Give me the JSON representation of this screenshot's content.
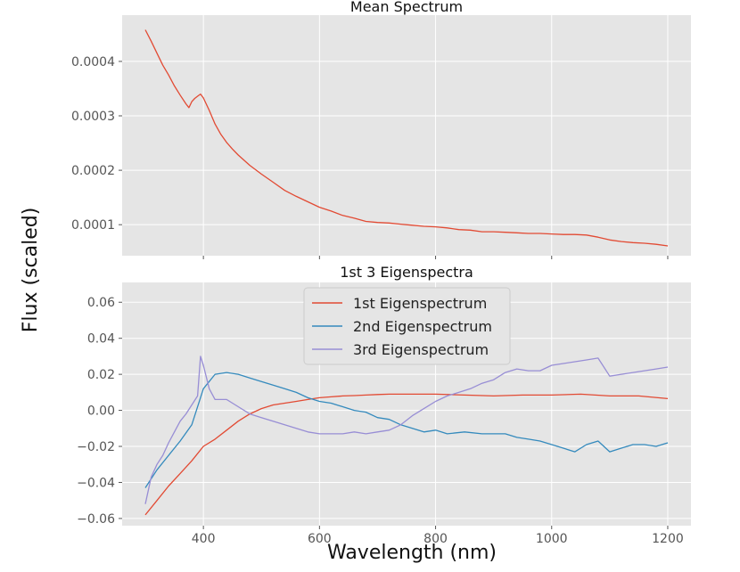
{
  "ylabel": "Flux (scaled)",
  "xlabel": "Wavelength (nm)",
  "colors": {
    "panel_bg": "#e5e5e5",
    "grid": "#ffffff",
    "red": "#e24a33",
    "blue": "#348abd",
    "purple": "#988ed5"
  },
  "chart_data": [
    {
      "type": "line",
      "title": "Mean Spectrum",
      "xlim": [
        260,
        1240
      ],
      "ylim": [
        4.3e-05,
        0.000485
      ],
      "x_ticks": [
        400,
        600,
        800,
        1000,
        1200
      ],
      "y_ticks": [
        0.0001,
        0.0002,
        0.0003,
        0.0004
      ],
      "y_tick_labels": [
        "0.0001",
        "0.0002",
        "0.0003",
        "0.0004"
      ],
      "show_x_tick_labels": false,
      "series": [
        {
          "name": "Mean Spectrum",
          "color": "#e24a33",
          "x": [
            300,
            310,
            320,
            330,
            340,
            350,
            360,
            370,
            375,
            380,
            385,
            390,
            395,
            400,
            410,
            420,
            430,
            440,
            450,
            460,
            480,
            500,
            520,
            540,
            560,
            580,
            600,
            620,
            640,
            660,
            680,
            700,
            720,
            740,
            760,
            780,
            800,
            820,
            840,
            860,
            880,
            900,
            920,
            940,
            960,
            980,
            1000,
            1020,
            1040,
            1060,
            1080,
            1100,
            1120,
            1140,
            1160,
            1180,
            1200
          ],
          "y": [
            0.000458,
            0.000437,
            0.000415,
            0.000393,
            0.000375,
            0.000355,
            0.000338,
            0.000322,
            0.000315,
            0.000326,
            0.000332,
            0.000336,
            0.00034,
            0.000333,
            0.00031,
            0.000285,
            0.000266,
            0.000251,
            0.000239,
            0.000228,
            0.000209,
            0.000193,
            0.000178,
            0.000163,
            0.000152,
            0.000142,
            0.000132,
            0.000125,
            0.000117,
            0.000112,
            0.000106,
            0.000104,
            0.000103,
            0.000101,
            9.9e-05,
            9.7e-05,
            9.6e-05,
            9.4e-05,
            9.1e-05,
            9e-05,
            8.7e-05,
            8.7e-05,
            8.6e-05,
            8.5e-05,
            8.4e-05,
            8.4e-05,
            8.3e-05,
            8.2e-05,
            8.2e-05,
            8.1e-05,
            7.7e-05,
            7.2e-05,
            6.9e-05,
            6.7e-05,
            6.6e-05,
            6.4e-05,
            6.1e-05
          ]
        }
      ]
    },
    {
      "type": "line",
      "title": "1st 3 Eigenspectra",
      "xlim": [
        260,
        1240
      ],
      "ylim": [
        -0.064,
        0.071
      ],
      "x_ticks": [
        400,
        600,
        800,
        1000,
        1200
      ],
      "x_tick_labels": [
        "400",
        "600",
        "800",
        "1000",
        "1200"
      ],
      "y_ticks": [
        -0.06,
        -0.04,
        -0.02,
        0.0,
        0.02,
        0.04,
        0.06
      ],
      "y_tick_labels": [
        "−0.06",
        "−0.04",
        "−0.02",
        "0.00",
        "0.02",
        "0.04",
        "0.06"
      ],
      "legend": "upper-center",
      "series": [
        {
          "name": "1st Eigenspectrum",
          "color": "#e24a33",
          "x": [
            300,
            320,
            340,
            360,
            380,
            400,
            420,
            440,
            460,
            480,
            500,
            520,
            540,
            560,
            580,
            600,
            620,
            640,
            660,
            680,
            700,
            720,
            740,
            760,
            780,
            800,
            850,
            900,
            950,
            1000,
            1050,
            1100,
            1150,
            1200
          ],
          "y": [
            -0.058,
            -0.05,
            -0.042,
            -0.035,
            -0.028,
            -0.02,
            -0.016,
            -0.011,
            -0.006,
            -0.002,
            0.001,
            0.003,
            0.004,
            0.005,
            0.006,
            0.007,
            0.0075,
            0.008,
            0.0082,
            0.0085,
            0.0088,
            0.009,
            0.009,
            0.009,
            0.009,
            0.009,
            0.0085,
            0.008,
            0.0085,
            0.0085,
            0.009,
            0.008,
            0.008,
            0.0065
          ]
        },
        {
          "name": "2nd Eigenspectrum",
          "color": "#348abd",
          "x": [
            300,
            320,
            340,
            360,
            380,
            400,
            420,
            440,
            460,
            480,
            500,
            520,
            540,
            560,
            580,
            600,
            620,
            640,
            660,
            680,
            700,
            720,
            740,
            760,
            780,
            800,
            820,
            850,
            880,
            900,
            920,
            940,
            960,
            980,
            1000,
            1020,
            1040,
            1060,
            1080,
            1100,
            1120,
            1140,
            1160,
            1180,
            1200
          ],
          "y": [
            -0.043,
            -0.033,
            -0.025,
            -0.017,
            -0.008,
            0.012,
            0.02,
            0.021,
            0.02,
            0.018,
            0.016,
            0.014,
            0.012,
            0.01,
            0.007,
            0.005,
            0.004,
            0.002,
            0.0,
            -0.001,
            -0.004,
            -0.005,
            -0.008,
            -0.01,
            -0.012,
            -0.011,
            -0.013,
            -0.012,
            -0.013,
            -0.013,
            -0.013,
            -0.015,
            -0.016,
            -0.017,
            -0.019,
            -0.021,
            -0.023,
            -0.019,
            -0.017,
            -0.023,
            -0.021,
            -0.019,
            -0.019,
            -0.02,
            -0.018
          ]
        },
        {
          "name": "3rd Eigenspectrum",
          "color": "#988ed5",
          "x": [
            300,
            310,
            320,
            330,
            340,
            350,
            360,
            370,
            380,
            390,
            395,
            400,
            410,
            420,
            440,
            460,
            480,
            500,
            520,
            540,
            560,
            580,
            600,
            620,
            640,
            660,
            680,
            700,
            720,
            740,
            760,
            780,
            800,
            820,
            840,
            860,
            880,
            900,
            920,
            940,
            960,
            980,
            1000,
            1020,
            1040,
            1060,
            1080,
            1100,
            1120,
            1140,
            1160,
            1180,
            1200
          ],
          "y": [
            -0.052,
            -0.037,
            -0.03,
            -0.025,
            -0.018,
            -0.012,
            -0.006,
            -0.002,
            0.003,
            0.008,
            0.03,
            0.025,
            0.012,
            0.006,
            0.006,
            0.002,
            -0.002,
            -0.004,
            -0.006,
            -0.008,
            -0.01,
            -0.012,
            -0.013,
            -0.013,
            -0.013,
            -0.012,
            -0.013,
            -0.012,
            -0.011,
            -0.008,
            -0.003,
            0.001,
            0.005,
            0.008,
            0.01,
            0.012,
            0.015,
            0.017,
            0.021,
            0.023,
            0.022,
            0.022,
            0.025,
            0.026,
            0.027,
            0.028,
            0.029,
            0.019,
            0.02,
            0.021,
            0.022,
            0.023,
            0.024
          ]
        }
      ]
    }
  ]
}
